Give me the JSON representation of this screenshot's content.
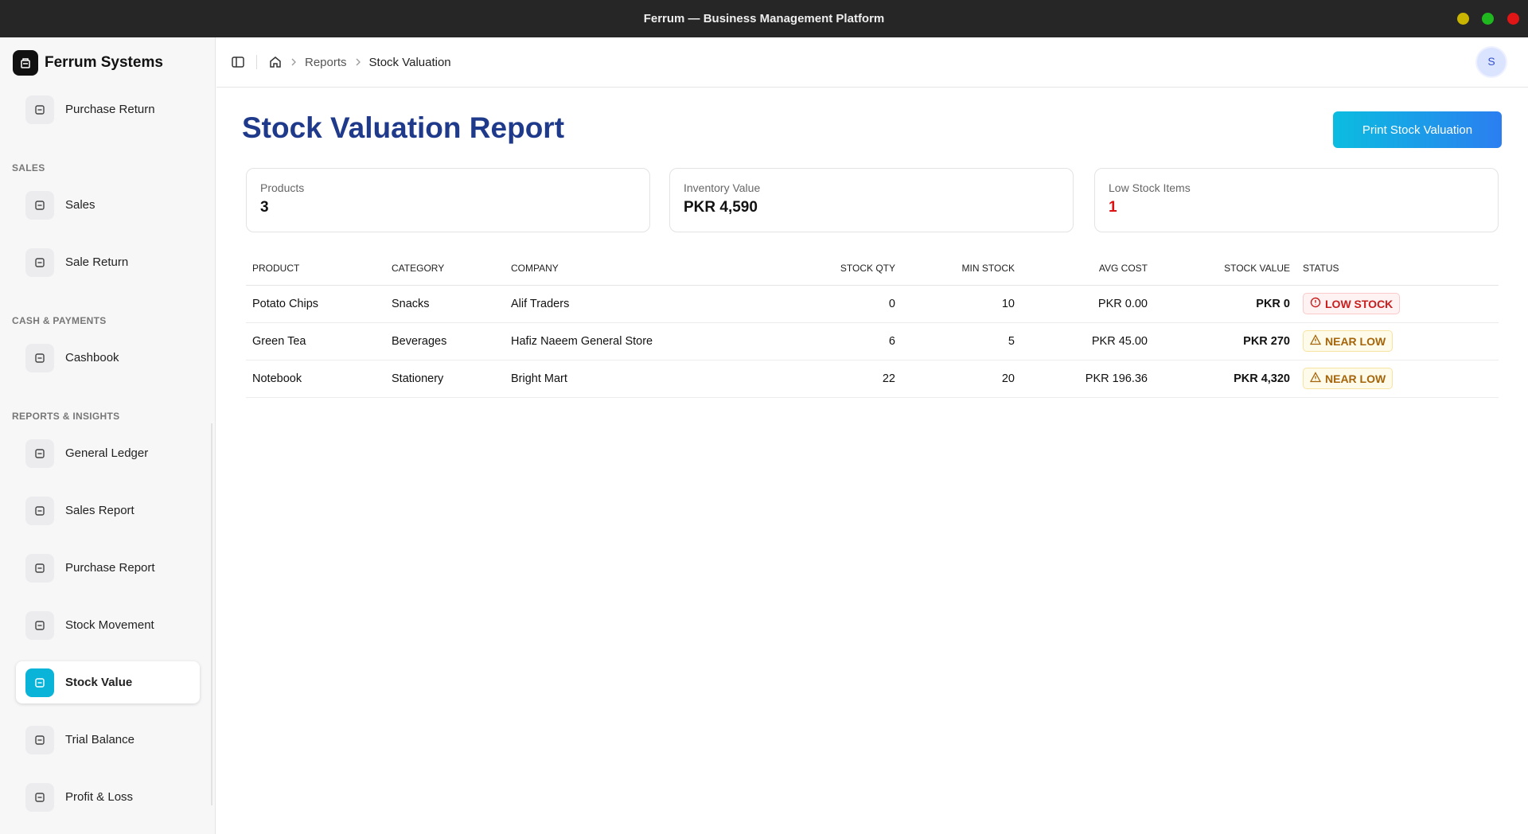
{
  "window_title": "Ferrum — Business Management Platform",
  "sidebar": {
    "brand": "Ferrum Systems",
    "groups": [
      {
        "items": [
          {
            "label": "Purchase Return"
          }
        ]
      },
      {
        "label": "SALES",
        "items": [
          {
            "label": "Sales"
          },
          {
            "label": "Sale Return"
          }
        ]
      },
      {
        "label": "CASH & PAYMENTS",
        "items": [
          {
            "label": "Cashbook"
          }
        ]
      },
      {
        "label": "REPORTS & INSIGHTS",
        "items": [
          {
            "label": "General Ledger"
          },
          {
            "label": "Sales Report"
          },
          {
            "label": "Purchase Report"
          },
          {
            "label": "Stock Movement"
          },
          {
            "label": "Stock Value",
            "active": true
          },
          {
            "label": "Trial Balance"
          },
          {
            "label": "Profit & Loss"
          }
        ]
      }
    ]
  },
  "breadcrumb": [
    "Reports",
    "Stock Valuation"
  ],
  "avatar": "S",
  "header": {
    "title": "Stock Valuation Report",
    "button": "Print Stock Valuation"
  },
  "stats": [
    {
      "label": "Products",
      "value": "3"
    },
    {
      "label": "Inventory Value",
      "value": "PKR 4,590"
    },
    {
      "label": "Low Stock Items",
      "value": "1",
      "alert": true
    }
  ],
  "table": {
    "columns": [
      "PRODUCT",
      "CATEGORY",
      "COMPANY",
      "STOCK QTY",
      "MIN STOCK",
      "AVG COST",
      "STOCK VALUE",
      "STATUS"
    ],
    "rows": [
      [
        "Potato Chips",
        "Snacks",
        "Alif Traders",
        "0",
        "10",
        "PKR 0.00",
        "PKR 0",
        {
          "label": "LOW STOCK",
          "level": "low"
        }
      ],
      [
        "Green Tea",
        "Beverages",
        "Hafiz Naeem General Store",
        "6",
        "5",
        "PKR 45.00",
        "PKR 270",
        {
          "label": "NEAR LOW",
          "level": "near"
        }
      ],
      [
        "Notebook",
        "Stationery",
        "Bright Mart",
        "22",
        "20",
        "PKR 196.36",
        "PKR 4,320",
        {
          "label": "NEAR LOW",
          "level": "near"
        }
      ]
    ]
  }
}
